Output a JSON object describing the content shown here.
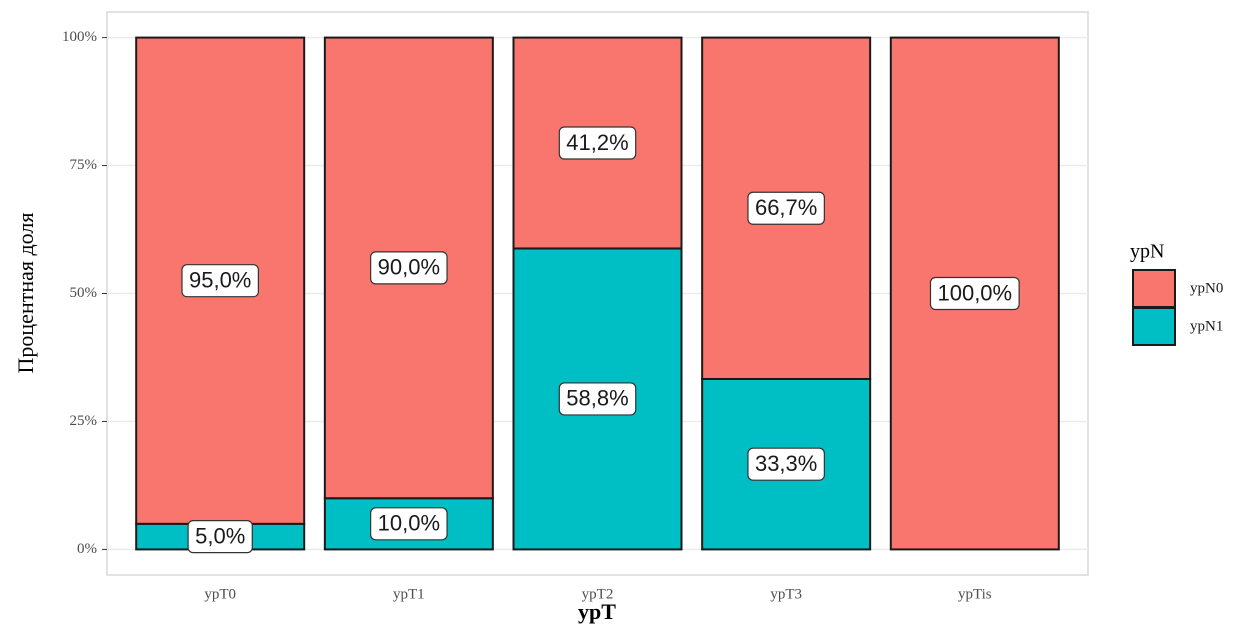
{
  "chart_data": {
    "type": "stacked_bar",
    "x_label": "ypT",
    "y_label": "Процентная доля",
    "categories": [
      "ypT0",
      "ypT1",
      "ypT2",
      "ypT3",
      "ypTis"
    ],
    "series": [
      {
        "name": "ypN0",
        "color": "#f8766d",
        "values": [
          95.0,
          90.0,
          41.2,
          66.7,
          100.0
        ],
        "value_labels": [
          "95,0%",
          "90,0%",
          "41,2%",
          "66,7%",
          "100,0%"
        ]
      },
      {
        "name": "ypN1",
        "color": "#00bfc4",
        "values": [
          5.0,
          10.0,
          58.8,
          33.3,
          0
        ],
        "value_labels": [
          "5,0%",
          "10,0%",
          "58,8%",
          "33,3%",
          null
        ]
      }
    ],
    "stack_order": "bottom_last_series",
    "legend_title": "ypN",
    "legend": "right",
    "ylim": [
      -5,
      105
    ],
    "yticks": [
      {
        "value": 0,
        "label": "0%"
      },
      {
        "value": 25,
        "label": "25%"
      },
      {
        "value": 50,
        "label": "50%"
      },
      {
        "value": 75,
        "label": "75%"
      },
      {
        "value": 100,
        "label": "100%"
      }
    ],
    "grid": true
  }
}
